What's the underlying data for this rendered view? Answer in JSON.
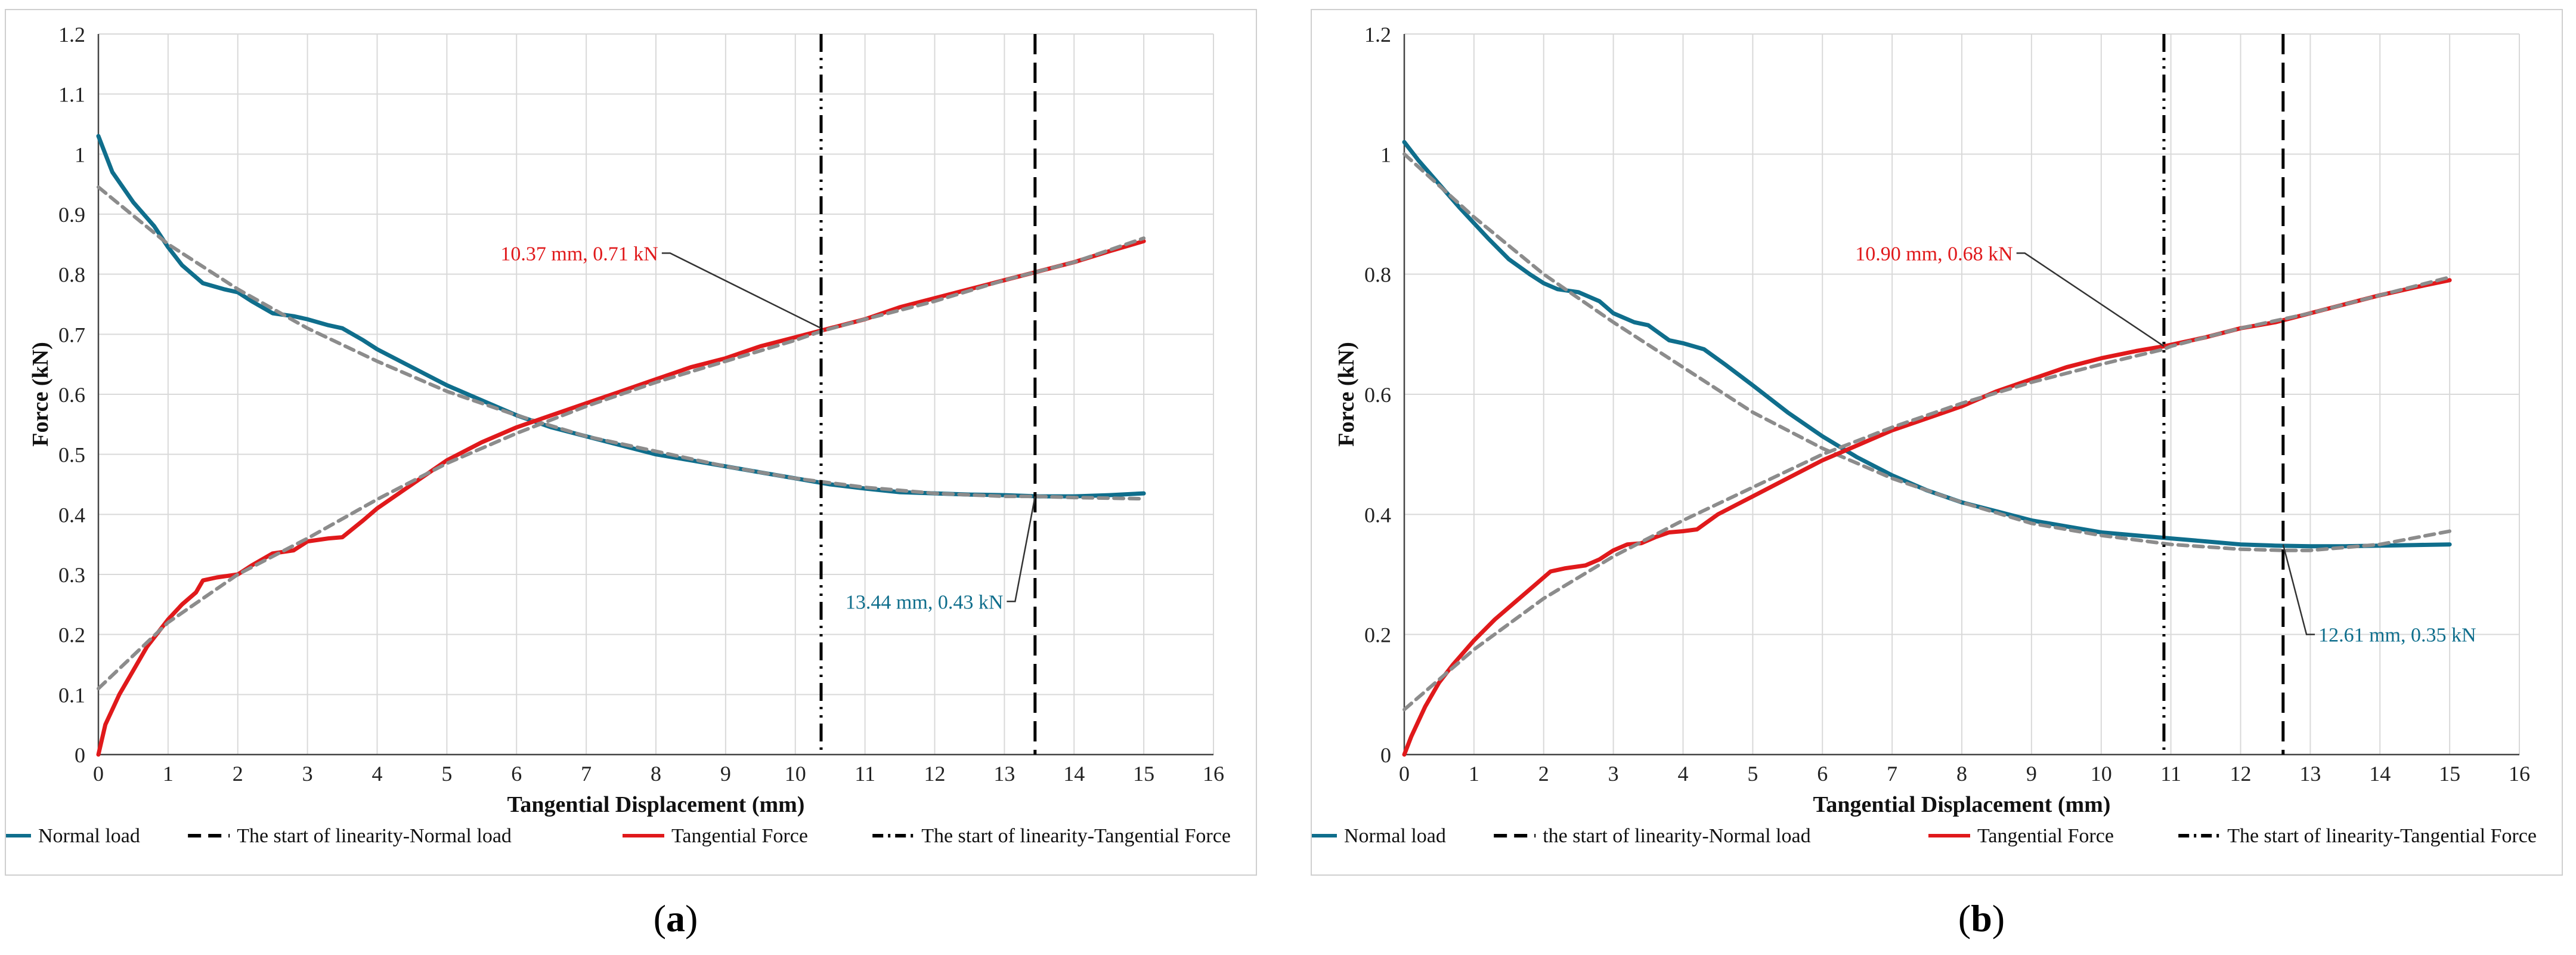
{
  "colors": {
    "normal": "#0f6e8c",
    "tangential": "#e0191b",
    "fit": "#8c8c8c",
    "vline": "#000000",
    "grid": "#d9d9d9",
    "annot_normal": "#0f6e8c",
    "annot_tangential": "#e0191b"
  },
  "captions": {
    "a": "a",
    "b": "b"
  },
  "chart_data": [
    {
      "id": "a",
      "type": "line",
      "xlabel": "Tangential Displacement (mm)",
      "ylabel": "Force (kN)",
      "xlim": [
        0,
        16
      ],
      "ylim": [
        0,
        1.2
      ],
      "xticks": [
        0,
        1,
        2,
        3,
        4,
        5,
        6,
        7,
        8,
        9,
        10,
        11,
        12,
        13,
        14,
        15,
        16
      ],
      "yticks": [
        0,
        0.1,
        0.2,
        0.3,
        0.4,
        0.5,
        0.6,
        0.7,
        0.8,
        0.9,
        1,
        1.1,
        1.2
      ],
      "legend_position": "bottom",
      "legend": [
        {
          "label": "Normal load",
          "style": "solid-normal"
        },
        {
          "label": "The start of linearity-Normal load",
          "style": "dash"
        },
        {
          "label": "Tangential Force",
          "style": "solid-tangential"
        },
        {
          "label": "The start of linearity-Tangential Force",
          "style": "dashdot"
        }
      ],
      "series": [
        {
          "name": "Normal load",
          "kind": "measured-normal",
          "x": [
            0,
            0.2,
            0.5,
            0.8,
            1.0,
            1.2,
            1.5,
            1.8,
            2.0,
            2.2,
            2.5,
            2.8,
            3.0,
            3.3,
            3.5,
            3.8,
            4.0,
            4.5,
            5.0,
            5.5,
            6.0,
            6.5,
            7.0,
            7.5,
            8.0,
            8.5,
            9.0,
            9.5,
            10.0,
            10.5,
            11.0,
            11.5,
            12.0,
            12.5,
            13.0,
            13.5,
            14.0,
            14.5,
            15.0
          ],
          "y": [
            1.03,
            0.97,
            0.92,
            0.88,
            0.845,
            0.815,
            0.785,
            0.775,
            0.77,
            0.755,
            0.735,
            0.73,
            0.725,
            0.715,
            0.71,
            0.69,
            0.675,
            0.645,
            0.615,
            0.59,
            0.565,
            0.545,
            0.53,
            0.515,
            0.5,
            0.49,
            0.48,
            0.47,
            0.46,
            0.45,
            0.443,
            0.437,
            0.435,
            0.433,
            0.432,
            0.43,
            0.43,
            0.432,
            0.435
          ]
        },
        {
          "name": "Normal load fit",
          "kind": "fit",
          "x": [
            0,
            1,
            2,
            3,
            4,
            5,
            6,
            7,
            8,
            9,
            10,
            11,
            12,
            13,
            13.44,
            14,
            15
          ],
          "y": [
            0.945,
            0.85,
            0.775,
            0.71,
            0.655,
            0.605,
            0.565,
            0.53,
            0.505,
            0.48,
            0.46,
            0.445,
            0.435,
            0.43,
            0.43,
            0.428,
            0.426
          ]
        },
        {
          "name": "Tangential Force",
          "kind": "measured-tangential",
          "x": [
            0,
            0.1,
            0.3,
            0.5,
            0.7,
            0.9,
            1.0,
            1.2,
            1.4,
            1.5,
            1.7,
            2.0,
            2.2,
            2.5,
            2.8,
            3.0,
            3.3,
            3.5,
            3.8,
            4.0,
            4.5,
            5.0,
            5.5,
            6.0,
            6.5,
            7.0,
            7.5,
            8.0,
            8.5,
            9.0,
            9.5,
            10.0,
            10.5,
            11.0,
            11.5,
            12.0,
            12.5,
            13.0,
            13.5,
            14.0,
            14.5,
            15.0
          ],
          "y": [
            0.0,
            0.05,
            0.1,
            0.14,
            0.18,
            0.21,
            0.225,
            0.25,
            0.27,
            0.29,
            0.295,
            0.3,
            0.315,
            0.335,
            0.34,
            0.355,
            0.36,
            0.362,
            0.39,
            0.41,
            0.45,
            0.49,
            0.52,
            0.545,
            0.565,
            0.585,
            0.605,
            0.625,
            0.645,
            0.66,
            0.68,
            0.695,
            0.71,
            0.725,
            0.745,
            0.76,
            0.775,
            0.79,
            0.805,
            0.82,
            0.838,
            0.855
          ]
        },
        {
          "name": "Tangential Force fit",
          "kind": "fit",
          "x": [
            0,
            1,
            2,
            3,
            4,
            5,
            6,
            7,
            8,
            9,
            10,
            10.37,
            11,
            12,
            13,
            14,
            15
          ],
          "y": [
            0.11,
            0.22,
            0.3,
            0.36,
            0.425,
            0.485,
            0.535,
            0.58,
            0.62,
            0.655,
            0.69,
            0.705,
            0.725,
            0.755,
            0.79,
            0.82,
            0.86
          ]
        }
      ],
      "vlines": [
        {
          "x": 10.37,
          "style": "dashdot"
        },
        {
          "x": 13.44,
          "style": "dash"
        }
      ],
      "annotations": [
        {
          "text": "10.37 mm, 0.71 kN",
          "x": 10.37,
          "y": 0.71,
          "tx": 8.05,
          "ty": 0.835,
          "series": "tangential",
          "anchor": "end"
        },
        {
          "text": "13.44 mm, 0.43 kN",
          "x": 13.44,
          "y": 0.43,
          "tx": 13.0,
          "ty": 0.255,
          "series": "normal",
          "anchor": "end"
        }
      ]
    },
    {
      "id": "b",
      "type": "line",
      "xlabel": "Tangential Displacement (mm)",
      "ylabel": "Force (kN)",
      "xlim": [
        0,
        16
      ],
      "ylim": [
        0,
        1.2
      ],
      "xticks": [
        0,
        1,
        2,
        3,
        4,
        5,
        6,
        7,
        8,
        9,
        10,
        11,
        12,
        13,
        14,
        15,
        16
      ],
      "yticks": [
        0,
        0.2,
        0.4,
        0.6,
        0.8,
        1,
        1.2
      ],
      "legend_position": "bottom",
      "legend": [
        {
          "label": "Normal load",
          "style": "solid-normal"
        },
        {
          "label": "the start of linearity-Normal load",
          "style": "dash"
        },
        {
          "label": "Tangential Force",
          "style": "solid-tangential"
        },
        {
          "label": "The start of linearity-Tangential Force",
          "style": "dashdot"
        }
      ],
      "series": [
        {
          "name": "Normal load",
          "kind": "measured-normal",
          "x": [
            0,
            0.2,
            0.5,
            0.8,
            1.0,
            1.2,
            1.5,
            1.8,
            2.0,
            2.2,
            2.5,
            2.8,
            3.0,
            3.3,
            3.5,
            3.8,
            4.0,
            4.3,
            4.6,
            5.0,
            5.5,
            6.0,
            6.5,
            7.0,
            7.5,
            8.0,
            8.5,
            9.0,
            9.5,
            10.0,
            10.5,
            11.0,
            11.5,
            12.0,
            12.5,
            13.0,
            13.5,
            14.0,
            14.5,
            15.0
          ],
          "y": [
            1.02,
            0.99,
            0.95,
            0.91,
            0.885,
            0.86,
            0.825,
            0.8,
            0.785,
            0.775,
            0.77,
            0.755,
            0.735,
            0.72,
            0.715,
            0.69,
            0.685,
            0.675,
            0.65,
            0.615,
            0.57,
            0.53,
            0.495,
            0.465,
            0.44,
            0.42,
            0.405,
            0.39,
            0.38,
            0.37,
            0.365,
            0.36,
            0.355,
            0.35,
            0.348,
            0.347,
            0.347,
            0.348,
            0.349,
            0.35
          ]
        },
        {
          "name": "Normal load fit",
          "kind": "fit",
          "x": [
            0,
            1,
            2,
            3,
            4,
            5,
            6,
            7,
            8,
            9,
            10,
            11,
            12,
            12.61,
            13,
            14,
            15
          ],
          "y": [
            1.0,
            0.895,
            0.8,
            0.72,
            0.645,
            0.57,
            0.51,
            0.46,
            0.42,
            0.385,
            0.365,
            0.35,
            0.342,
            0.34,
            0.34,
            0.35,
            0.372
          ]
        },
        {
          "name": "Tangential Force",
          "kind": "measured-tangential",
          "x": [
            0,
            0.1,
            0.3,
            0.5,
            0.7,
            1.0,
            1.3,
            1.6,
            1.9,
            2.1,
            2.3,
            2.6,
            2.8,
            3.0,
            3.2,
            3.4,
            3.6,
            3.8,
            4.0,
            4.2,
            4.5,
            5.0,
            5.5,
            6.0,
            6.5,
            7.0,
            7.5,
            8.0,
            8.5,
            9.0,
            9.5,
            10.0,
            10.5,
            10.9,
            11.5,
            12.0,
            12.5,
            13.0,
            13.5,
            14.0,
            14.5,
            15.0
          ],
          "y": [
            0.0,
            0.03,
            0.08,
            0.12,
            0.15,
            0.19,
            0.225,
            0.255,
            0.285,
            0.305,
            0.31,
            0.315,
            0.325,
            0.34,
            0.35,
            0.352,
            0.362,
            0.37,
            0.372,
            0.375,
            0.4,
            0.43,
            0.46,
            0.49,
            0.515,
            0.54,
            0.56,
            0.58,
            0.605,
            0.625,
            0.645,
            0.66,
            0.672,
            0.68,
            0.695,
            0.71,
            0.72,
            0.735,
            0.75,
            0.765,
            0.778,
            0.79
          ]
        },
        {
          "name": "Tangential Force fit",
          "kind": "fit",
          "x": [
            0,
            1,
            2,
            3,
            4,
            5,
            6,
            7,
            8,
            9,
            10,
            10.9,
            11,
            12,
            13,
            14,
            15
          ],
          "y": [
            0.075,
            0.175,
            0.26,
            0.33,
            0.39,
            0.445,
            0.5,
            0.545,
            0.585,
            0.62,
            0.65,
            0.675,
            0.68,
            0.71,
            0.735,
            0.765,
            0.795
          ]
        }
      ],
      "vlines": [
        {
          "x": 10.9,
          "style": "dashdot"
        },
        {
          "x": 12.61,
          "style": "dash"
        }
      ],
      "annotations": [
        {
          "text": "10.90 mm, 0.68 kN",
          "x": 10.9,
          "y": 0.68,
          "tx": 8.75,
          "ty": 0.835,
          "series": "tangential",
          "anchor": "end"
        },
        {
          "text": "12.61 mm, 0.35 kN",
          "x": 12.61,
          "y": 0.35,
          "tx": 13.1,
          "ty": 0.2,
          "series": "normal",
          "anchor": "start"
        }
      ]
    }
  ]
}
